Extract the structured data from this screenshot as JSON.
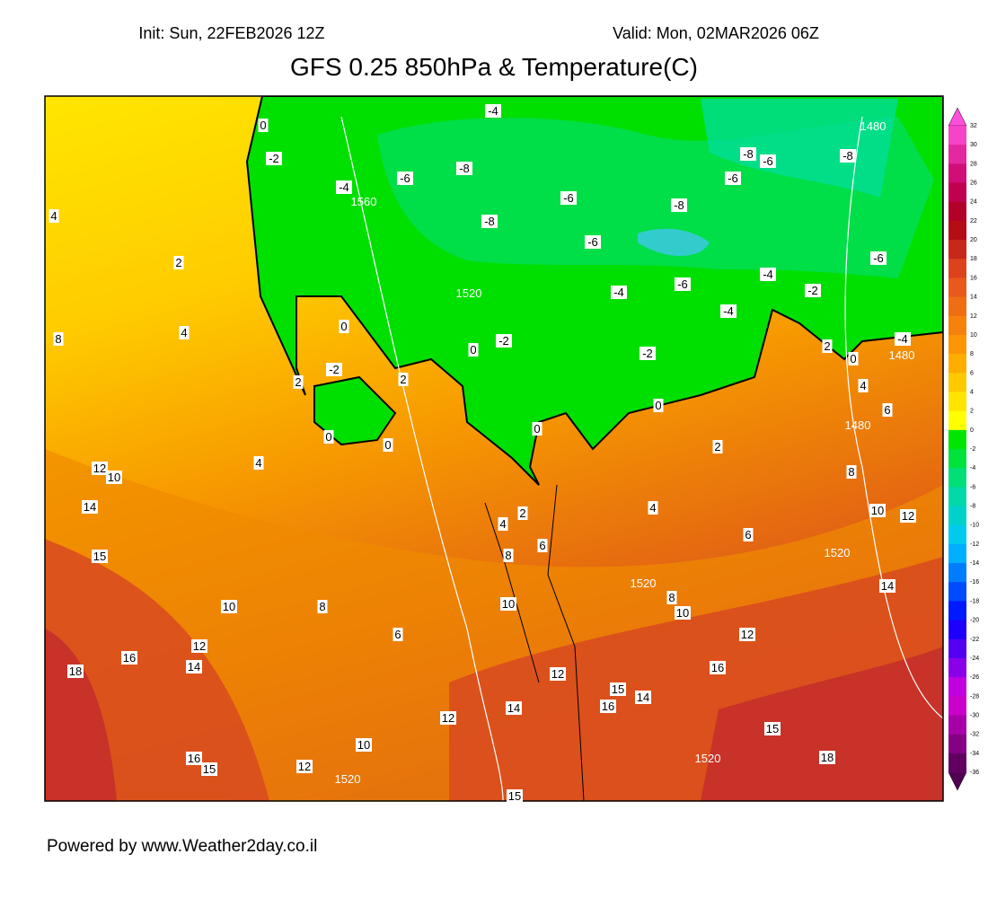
{
  "header": {
    "init": "Init: Sun, 22FEB2026 12Z",
    "valid": "Valid: Mon, 02MAR2026 06Z",
    "title": "GFS 0.25 850hPa & Temperature(C)"
  },
  "map": {
    "temperature_labels": [
      "0",
      "-2",
      "-4",
      "-6",
      "-8",
      "-4",
      "-6",
      "-8",
      "-6",
      "-4",
      "-2",
      "0",
      "-2",
      "0",
      "2",
      "-8",
      "-6",
      "-6",
      "-8",
      "-8",
      "-6",
      "-4",
      "-4",
      "-2",
      "-6",
      "2",
      "0",
      "-4",
      "4",
      "6",
      "8",
      "10",
      "12",
      "14",
      "4",
      "2",
      "4",
      "8",
      "0",
      "-2",
      "2",
      "2",
      "0",
      "0",
      "0",
      "4",
      "12",
      "10",
      "14",
      "15",
      "4",
      "2",
      "8",
      "6",
      "4",
      "6",
      "8",
      "10",
      "10",
      "8",
      "6",
      "10",
      "12",
      "16",
      "12",
      "16",
      "14",
      "18",
      "12",
      "15",
      "14",
      "16",
      "14",
      "12",
      "15",
      "10",
      "18",
      "16",
      "15",
      "12",
      "15"
    ],
    "height_labels": [
      "1480",
      "1560",
      "1520",
      "1480",
      "1480",
      "1520",
      "1520",
      "1520",
      "1520"
    ]
  },
  "colorbar": {
    "ticks": [
      32,
      30,
      28,
      26,
      24,
      22,
      20,
      18,
      16,
      14,
      12,
      10,
      8,
      6,
      4,
      2,
      0,
      -2,
      -4,
      -6,
      -8,
      -10,
      -12,
      -14,
      -16,
      -18,
      -20,
      -22,
      -24,
      -26,
      -28,
      -30,
      -32,
      -34,
      -36
    ]
  },
  "footer": "Powered by www.Weather2day.co.il"
}
